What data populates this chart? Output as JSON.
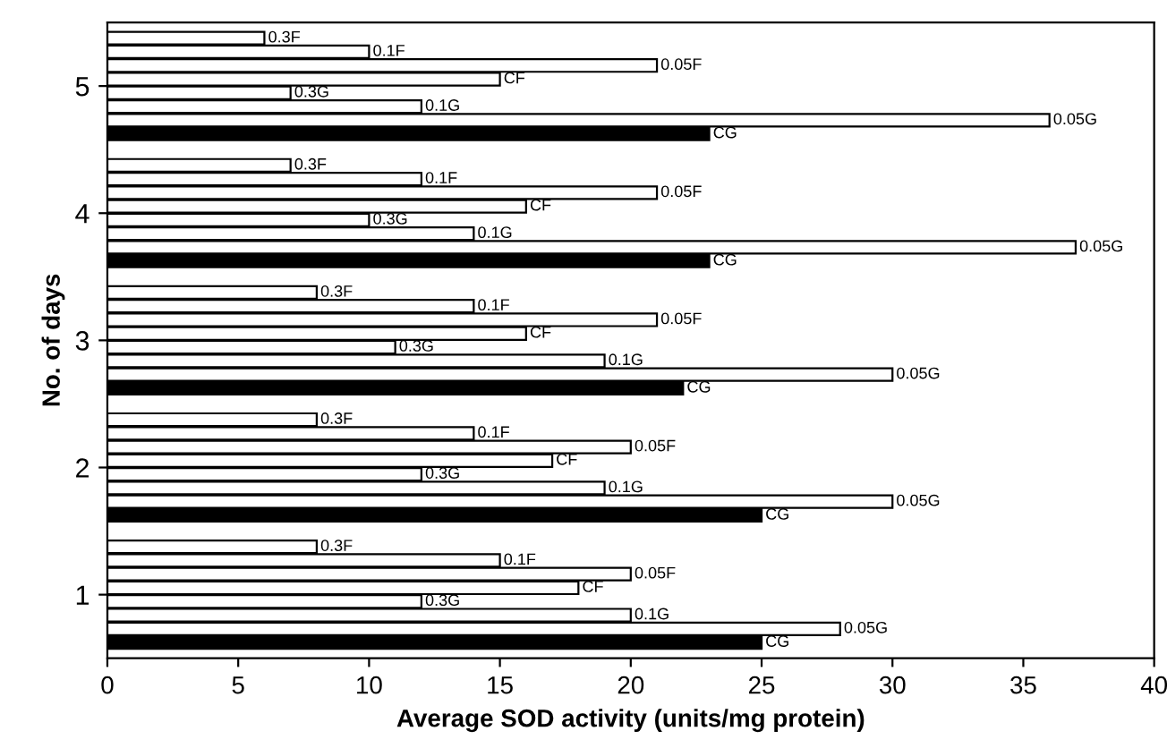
{
  "chart_data": {
    "type": "bar",
    "orientation": "horizontal",
    "xlabel": "Average SOD activity (units/mg protein)",
    "ylabel": "No. of days",
    "categories": [
      "5",
      "4",
      "3",
      "2",
      "1"
    ],
    "series": [
      {
        "name": "0.3F",
        "color": "#ffffff",
        "values": [
          6,
          7,
          8,
          8,
          8
        ]
      },
      {
        "name": "0.1F",
        "color": "#ffffff",
        "values": [
          10,
          12,
          14,
          14,
          15
        ]
      },
      {
        "name": "0.05F",
        "color": "#ffffff",
        "values": [
          21,
          21,
          21,
          20,
          20
        ]
      },
      {
        "name": "CF",
        "color": "#ffffff",
        "values": [
          15,
          16,
          16,
          17,
          18
        ]
      },
      {
        "name": "0.3G",
        "color": "#ffffff",
        "values": [
          7,
          10,
          11,
          12,
          12
        ]
      },
      {
        "name": "0.1G",
        "color": "#ffffff",
        "values": [
          12,
          14,
          19,
          19,
          20
        ]
      },
      {
        "name": "0.05G",
        "color": "#ffffff",
        "values": [
          36,
          37,
          30,
          30,
          28
        ]
      },
      {
        "name": "CG",
        "color": "#000000",
        "values": [
          23,
          23,
          22,
          25,
          25
        ]
      }
    ],
    "xlim": [
      0,
      40
    ],
    "xticks": [
      0,
      5,
      10,
      15,
      20,
      25,
      30,
      35,
      40
    ],
    "grid": false,
    "legend": false
  }
}
